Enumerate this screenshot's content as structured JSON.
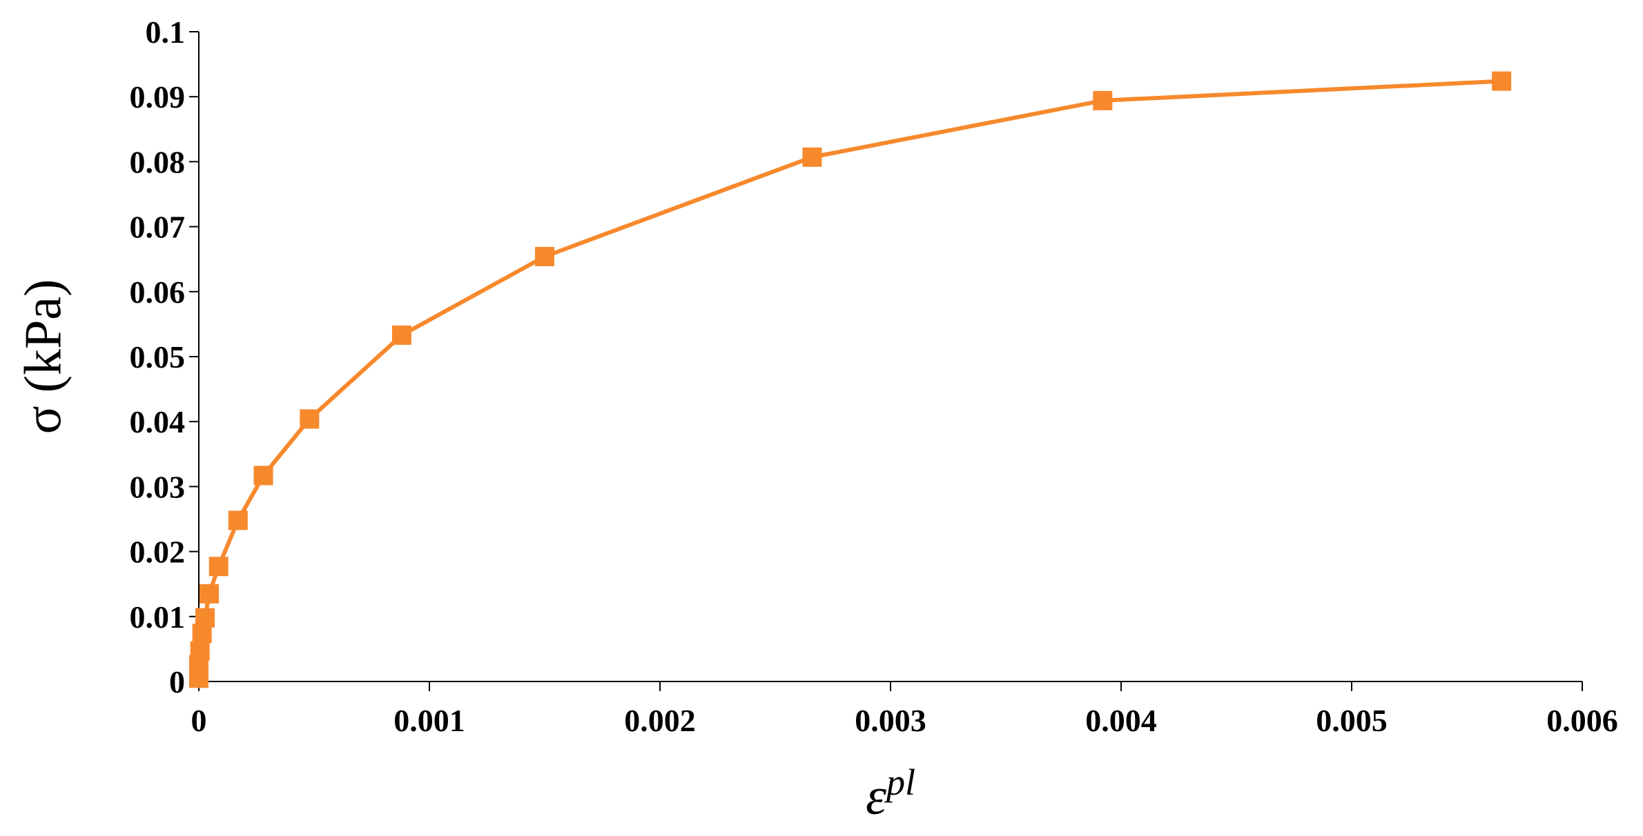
{
  "chart_data": {
    "type": "line",
    "y_label": "σ (kPa)",
    "x_label": "ε",
    "x_label_sup": "pl",
    "series": [
      {
        "color": "#f7892d",
        "x": [
          0,
          0,
          5e-06,
          1.4e-05,
          2.7e-05,
          4.5e-05,
          8.6e-05,
          0.00017,
          0.00028,
          0.00048,
          0.00088,
          0.0015,
          0.00266,
          0.00392,
          0.00565
        ],
        "values": [
          0.0005,
          0.0026,
          0.0047,
          0.0074,
          0.0098,
          0.0135,
          0.0177,
          0.0248,
          0.0317,
          0.0404,
          0.0533,
          0.0654,
          0.0807,
          0.0894,
          0.0924
        ]
      }
    ],
    "xlim": [
      0,
      0.006
    ],
    "xticks": [
      0,
      0.001,
      0.002,
      0.003,
      0.004,
      0.005,
      0.006
    ],
    "ylim": [
      0,
      0.1
    ],
    "yticks": [
      0,
      0.01,
      0.02,
      0.03,
      0.04,
      0.05,
      0.06,
      0.07,
      0.08,
      0.09,
      0.1
    ]
  }
}
